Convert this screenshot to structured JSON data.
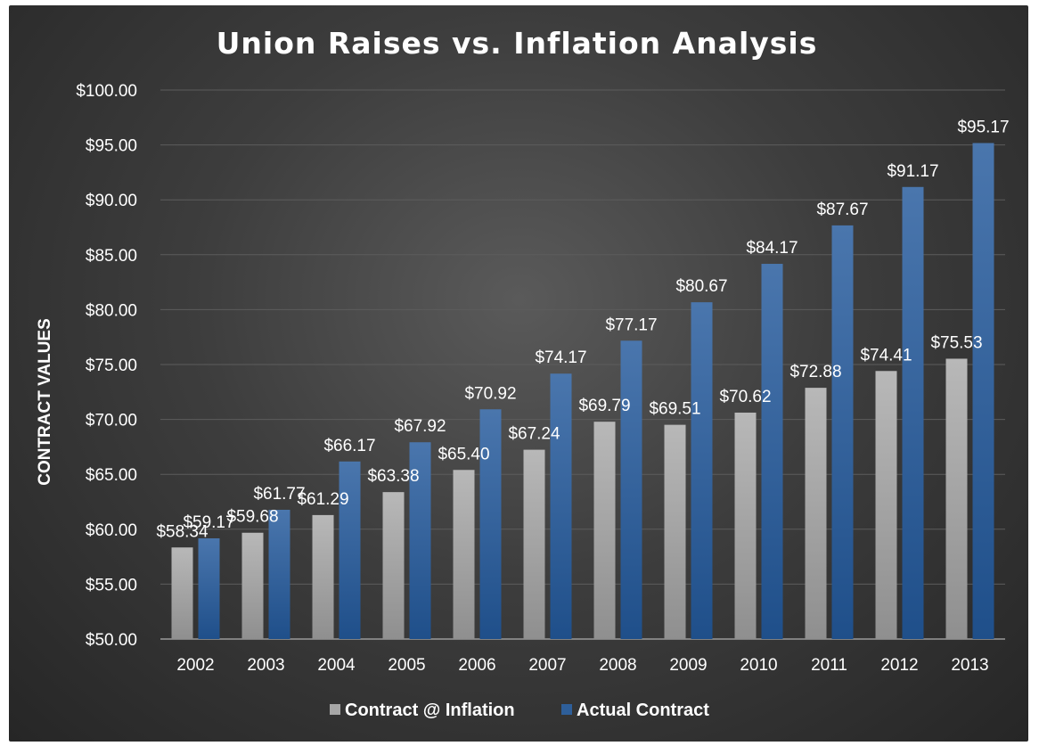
{
  "chart_data": {
    "type": "bar",
    "title": "Union Raises vs. Inflation Analysis",
    "xlabel": "",
    "ylabel": "CONTRACT VALUES",
    "ylim": [
      50,
      100
    ],
    "yticks": [
      "$50.00",
      "$55.00",
      "$60.00",
      "$65.00",
      "$70.00",
      "$75.00",
      "$80.00",
      "$85.00",
      "$90.00",
      "$95.00",
      "$100.00"
    ],
    "ytick_values": [
      50,
      55,
      60,
      65,
      70,
      75,
      80,
      85,
      90,
      95,
      100
    ],
    "categories": [
      "2002",
      "2003",
      "2004",
      "2005",
      "2006",
      "2007",
      "2008",
      "2009",
      "2010",
      "2011",
      "2012",
      "2013"
    ],
    "series": [
      {
        "name": "Contract @ Inflation",
        "values": [
          58.34,
          59.68,
          61.29,
          63.38,
          65.4,
          67.24,
          69.79,
          69.51,
          70.62,
          72.88,
          74.41,
          75.53
        ],
        "labels": [
          "$58.34",
          "$59.68",
          "$61.29",
          "$63.38",
          "$65.40",
          "$67.24",
          "$69.79",
          "$69.51",
          "$70.62",
          "$72.88",
          "$74.41",
          "$75.53"
        ],
        "color": "#a6a6a6"
      },
      {
        "name": "Actual Contract",
        "values": [
          59.17,
          61.77,
          66.17,
          67.92,
          70.92,
          74.17,
          77.17,
          80.67,
          84.17,
          87.67,
          91.17,
          95.17
        ],
        "labels": [
          "$59.17",
          "$61.77",
          "$66.17",
          "$67.92",
          "$70.92",
          "$74.17",
          "$77.17",
          "$80.67",
          "$84.17",
          "$87.67",
          "$91.17",
          "$95.17"
        ],
        "color": "#2e5f9a"
      }
    ],
    "grid": true,
    "legend_position": "bottom"
  }
}
